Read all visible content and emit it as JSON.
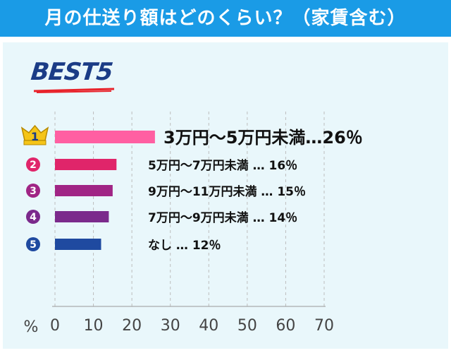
{
  "title": "月の仕送り額はどのくらい？（家賃含む）",
  "badge": "BEST5",
  "chart_data": {
    "type": "bar",
    "orientation": "horizontal",
    "xlabel": "%",
    "xlim": [
      0,
      70
    ],
    "xticks": [
      0,
      10,
      20,
      30,
      40,
      50,
      60,
      70
    ],
    "grid": true,
    "items": [
      {
        "rank": "1",
        "label": "3万円～5万円未満…26％",
        "value": 26,
        "color": "#ff5fa2"
      },
      {
        "rank": "2",
        "label": "5万円～7万円未満 … 16％",
        "value": 16,
        "color": "#e0256a"
      },
      {
        "rank": "3",
        "label": "9万円～11万円未満 … 15％",
        "value": 15,
        "color": "#a02585"
      },
      {
        "rank": "4",
        "label": "7万円～9万円未満 … 14％",
        "value": 14,
        "color": "#7b2a8c"
      },
      {
        "rank": "5",
        "label": "なし … 12％",
        "value": 12,
        "color": "#1f4aa0"
      }
    ]
  }
}
